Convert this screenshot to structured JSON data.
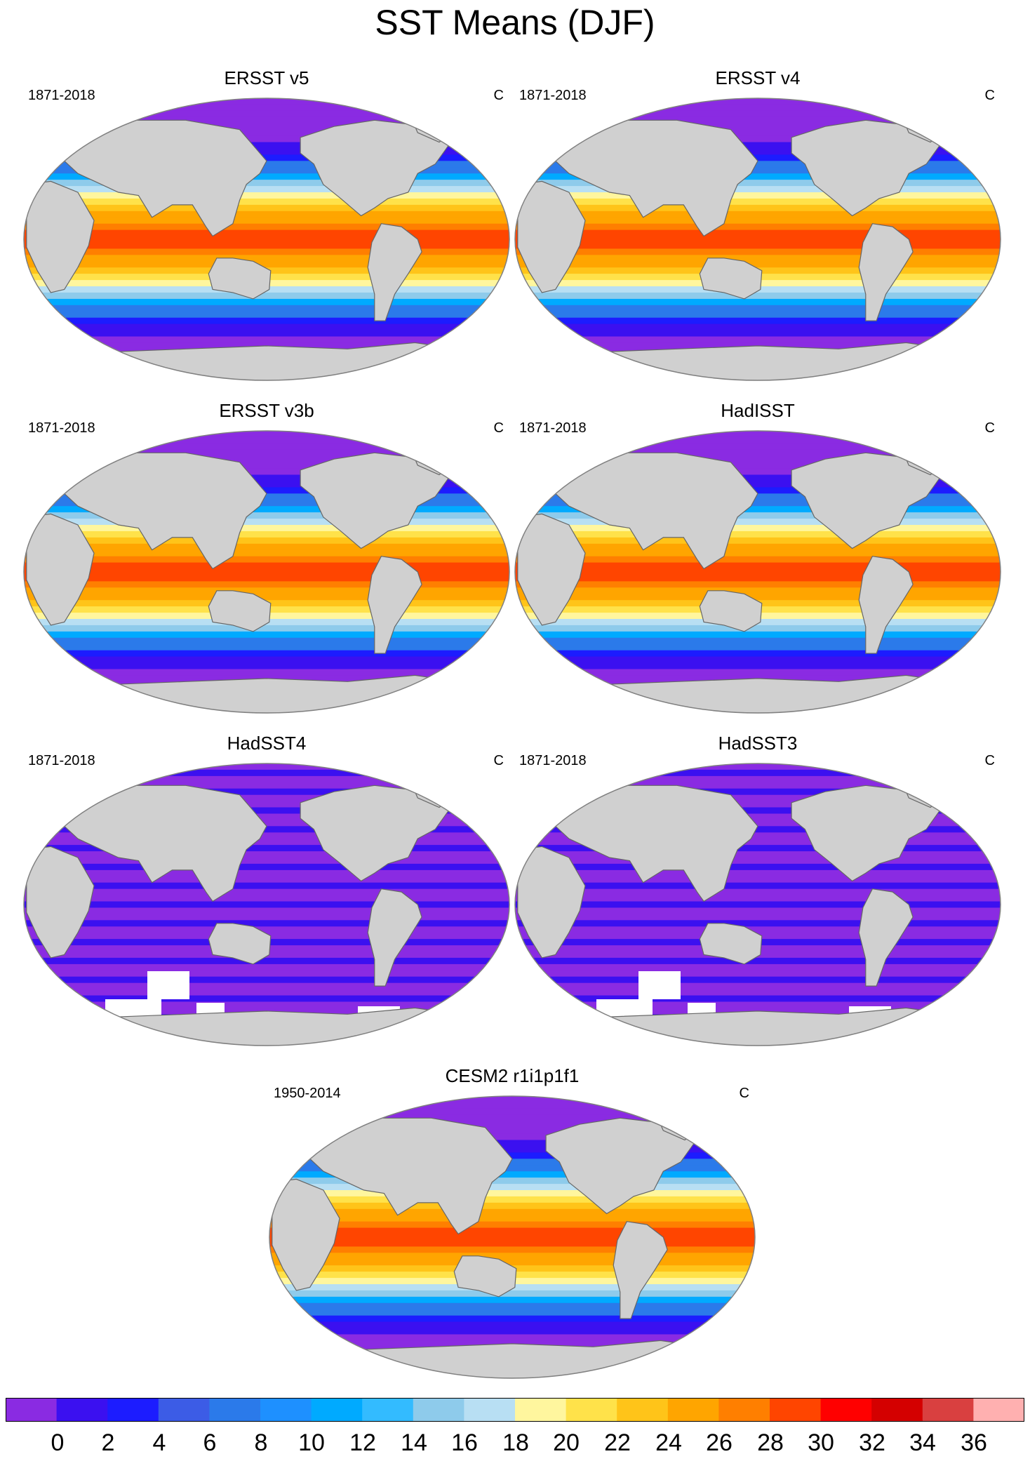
{
  "title": "SST Means (DJF)",
  "panels": [
    {
      "title": "ERSST v5",
      "years": "1871-2018",
      "units": "C",
      "style": "full"
    },
    {
      "title": "ERSST v4",
      "years": "1871-2018",
      "units": "C",
      "style": "full"
    },
    {
      "title": "ERSST v3b",
      "years": "1871-2018",
      "units": "C",
      "style": "full"
    },
    {
      "title": "HadISST",
      "years": "1871-2018",
      "units": "C",
      "style": "full"
    },
    {
      "title": "HadSST4",
      "years": "1871-2018",
      "units": "C",
      "style": "cold"
    },
    {
      "title": "HadSST3",
      "years": "1871-2018",
      "units": "C",
      "style": "cold"
    },
    {
      "title": "CESM2 r1i1p1f1",
      "years": "1950-2014",
      "units": "C",
      "style": "full"
    }
  ],
  "colorbar": {
    "labels": [
      "0",
      "2",
      "4",
      "6",
      "8",
      "10",
      "12",
      "14",
      "16",
      "18",
      "20",
      "22",
      "24",
      "26",
      "28",
      "30",
      "32",
      "34",
      "36"
    ],
    "colors": [
      "#8a2be2",
      "#3b10f0",
      "#1c1cff",
      "#3c5ce6",
      "#2b7aea",
      "#1e90ff",
      "#00aaff",
      "#33bbff",
      "#8ecbeb",
      "#b8dff3",
      "#fff69e",
      "#ffe24a",
      "#ffc419",
      "#ffa500",
      "#ff7f00",
      "#ff4500",
      "#ff0000",
      "#d40000",
      "#d94040",
      "#ffb0b0"
    ]
  },
  "colors": {
    "land": "#d0d0d0",
    "coast": "#666666",
    "frame": "#808080"
  }
}
